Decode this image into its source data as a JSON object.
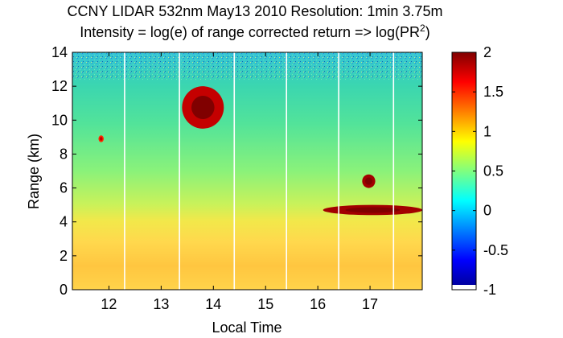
{
  "chart_data": {
    "type": "heatmap",
    "title_line1": "CCNY LIDAR 532nm May13 2010 Resolution: 1min 3.75m",
    "title_line2_main": "Intensity = log(e) of range corrected return => log(PR",
    "title_line2_sup": "2",
    "title_line2_end": ")",
    "xlabel": "Local Time",
    "ylabel": "Range (km)",
    "xlim": [
      11.3,
      18.0
    ],
    "ylim": [
      0,
      14
    ],
    "xticks": [
      12,
      13,
      14,
      15,
      16,
      17
    ],
    "yticks": [
      0,
      2,
      4,
      6,
      8,
      10,
      12,
      14
    ],
    "colorbar": {
      "clim": [
        -1,
        2
      ],
      "ticks": [
        "2",
        "1.5",
        "1",
        "0.5",
        "0",
        "-0.5",
        "-1"
      ],
      "colormap": "jet"
    },
    "data_gaps_local_time": [
      12.3,
      13.35,
      14.4,
      15.4,
      16.4,
      17.45
    ],
    "features": [
      {
        "name": "boundary layer",
        "x_range": [
          11.3,
          18.0
        ],
        "y_range": [
          0,
          4.0
        ],
        "value": 1.2
      },
      {
        "name": "elevated aerosol layer",
        "x_range": [
          11.3,
          18.0
        ],
        "y_range": [
          4.0,
          5.5
        ],
        "value": 0.9
      },
      {
        "name": "free troposphere",
        "x_range": [
          11.3,
          18.0
        ],
        "y_range": [
          5.5,
          12.5
        ],
        "value": 0.55
      },
      {
        "name": "cloud",
        "x_range": [
          13.4,
          14.2
        ],
        "y_range": [
          9.5,
          12.0
        ],
        "value": 1.8
      },
      {
        "name": "cloud",
        "x_range": [
          11.8,
          11.9
        ],
        "y_range": [
          8.7,
          9.1
        ],
        "value": 1.5
      },
      {
        "name": "cloud",
        "x_range": [
          16.85,
          17.1
        ],
        "y_range": [
          6.0,
          6.8
        ],
        "value": 1.9
      },
      {
        "name": "cloud base",
        "x_range": [
          16.1,
          18.0
        ],
        "y_range": [
          4.4,
          5.0
        ],
        "value": 1.9
      }
    ]
  }
}
